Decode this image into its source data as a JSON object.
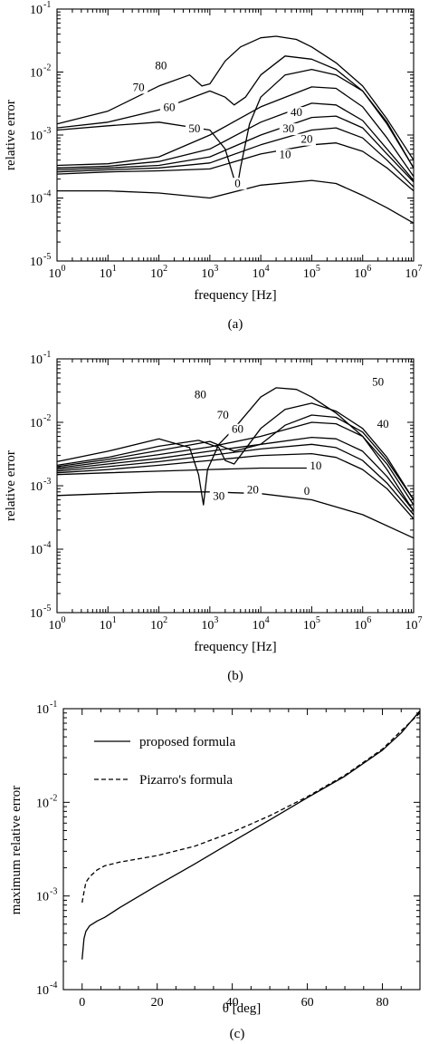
{
  "colors": {
    "line": "#000000",
    "background": "#ffffff"
  },
  "chart_data": [
    {
      "type": "line",
      "caption": "(a)",
      "xlabel": "frequency [Hz]",
      "ylabel": "relative error",
      "xscale": "log",
      "yscale": "log",
      "xlim": [
        1,
        10000000
      ],
      "ylim": [
        1e-05,
        0.1
      ],
      "x_tick_labels": [
        {
          "base": "10",
          "exp": "0"
        },
        {
          "base": "10",
          "exp": "1"
        },
        {
          "base": "10",
          "exp": "2"
        },
        {
          "base": "10",
          "exp": "3"
        },
        {
          "base": "10",
          "exp": "4"
        },
        {
          "base": "10",
          "exp": "5"
        },
        {
          "base": "10",
          "exp": "6"
        },
        {
          "base": "10",
          "exp": "7"
        }
      ],
      "y_tick_labels": [
        {
          "base": "10",
          "exp": "-5"
        },
        {
          "base": "10",
          "exp": "-4"
        },
        {
          "base": "10",
          "exp": "-3"
        },
        {
          "base": "10",
          "exp": "-2"
        },
        {
          "base": "10",
          "exp": "-1"
        }
      ],
      "series": [
        {
          "name": "0",
          "label_at": [
            3500,
            0.00015
          ],
          "x": [
            1,
            10,
            100,
            1000,
            10000,
            100000,
            300000,
            1000000,
            3000000,
            10000000
          ],
          "y": [
            0.00013,
            0.00013,
            0.00012,
            0.0001,
            0.00016,
            0.00019,
            0.00017,
            0.00011,
            7e-05,
            4e-05
          ]
        },
        {
          "name": "10",
          "label_at": [
            30000,
            0.00043
          ],
          "x": [
            1,
            10,
            100,
            1000,
            10000,
            100000,
            300000,
            1000000,
            3000000,
            10000000
          ],
          "y": [
            0.00024,
            0.00026,
            0.00027,
            0.00029,
            0.0005,
            0.0007,
            0.00075,
            0.00055,
            0.0003,
            0.00013
          ]
        },
        {
          "name": "20",
          "label_at": [
            80000,
            0.00075
          ],
          "x": [
            1,
            10,
            100,
            1000,
            10000,
            100000,
            300000,
            1000000,
            3000000,
            10000000
          ],
          "y": [
            0.00026,
            0.00028,
            0.0003,
            0.00036,
            0.0007,
            0.0012,
            0.0013,
            0.0009,
            0.0004,
            0.00015
          ]
        },
        {
          "name": "30",
          "label_at": [
            35000,
            0.0011
          ],
          "x": [
            1,
            10,
            100,
            1000,
            10000,
            100000,
            300000,
            1000000,
            3000000,
            10000000
          ],
          "y": [
            0.00028,
            0.0003,
            0.00033,
            0.00045,
            0.001,
            0.0019,
            0.002,
            0.0013,
            0.0005,
            0.00018
          ]
        },
        {
          "name": "40",
          "label_at": [
            50000,
            0.002
          ],
          "x": [
            1,
            10,
            100,
            1000,
            10000,
            100000,
            300000,
            1000000,
            3000000,
            10000000
          ],
          "y": [
            0.0003,
            0.00032,
            0.00038,
            0.0006,
            0.0016,
            0.0032,
            0.003,
            0.0017,
            0.0006,
            0.00019
          ]
        },
        {
          "name": "50",
          "label_at": [
            500,
            0.0011
          ],
          "x": [
            1,
            10,
            100,
            1000,
            10000,
            100000,
            300000,
            1000000,
            3000000,
            10000000
          ],
          "y": [
            0.00033,
            0.00035,
            0.00045,
            0.001,
            0.0028,
            0.0058,
            0.0055,
            0.0028,
            0.0009,
            0.00022
          ]
        },
        {
          "name": "60",
          "label_at": [
            160,
            0.0024
          ],
          "x": [
            1,
            10,
            100,
            1000,
            2000,
            3000,
            3500,
            4000,
            6000,
            10000,
            30000,
            100000,
            300000,
            1000000,
            3000000,
            10000000
          ],
          "y": [
            0.0012,
            0.0014,
            0.0016,
            0.0012,
            0.0006,
            0.0002,
            0.00016,
            0.0003,
            0.0015,
            0.004,
            0.009,
            0.011,
            0.009,
            0.005,
            0.0015,
            0.0003
          ]
        },
        {
          "name": "70",
          "label_at": [
            40,
            0.005
          ],
          "x": [
            1,
            10,
            100,
            1000,
            2000,
            3000,
            5000,
            10000,
            30000,
            100000,
            300000,
            1000000,
            3000000,
            10000000
          ],
          "y": [
            0.0013,
            0.0016,
            0.0025,
            0.005,
            0.004,
            0.003,
            0.004,
            0.009,
            0.018,
            0.016,
            0.011,
            0.005,
            0.0016,
            0.0003
          ]
        },
        {
          "name": "80",
          "label_at": [
            110,
            0.011
          ],
          "x": [
            1,
            10,
            100,
            400,
            700,
            1000,
            2000,
            4000,
            10000,
            20000,
            50000,
            100000,
            300000,
            1000000,
            3000000,
            10000000
          ],
          "y": [
            0.0015,
            0.0024,
            0.006,
            0.009,
            0.006,
            0.0065,
            0.015,
            0.025,
            0.035,
            0.037,
            0.033,
            0.025,
            0.014,
            0.006,
            0.0018,
            0.0004
          ]
        }
      ]
    },
    {
      "type": "line",
      "caption": "(b)",
      "xlabel": "frequency [Hz]",
      "ylabel": "relative error",
      "xscale": "log",
      "yscale": "log",
      "xlim": [
        1,
        10000000
      ],
      "ylim": [
        1e-05,
        0.1
      ],
      "x_tick_labels": [
        {
          "base": "10",
          "exp": "0"
        },
        {
          "base": "10",
          "exp": "1"
        },
        {
          "base": "10",
          "exp": "2"
        },
        {
          "base": "10",
          "exp": "3"
        },
        {
          "base": "10",
          "exp": "4"
        },
        {
          "base": "10",
          "exp": "5"
        },
        {
          "base": "10",
          "exp": "6"
        },
        {
          "base": "10",
          "exp": "7"
        }
      ],
      "y_tick_labels": [
        {
          "base": "10",
          "exp": "-5"
        },
        {
          "base": "10",
          "exp": "-4"
        },
        {
          "base": "10",
          "exp": "-3"
        },
        {
          "base": "10",
          "exp": "-2"
        },
        {
          "base": "10",
          "exp": "-1"
        }
      ],
      "series": [
        {
          "name": "0",
          "label_at": [
            80000,
            0.00072
          ],
          "x": [
            1,
            10,
            100,
            1000,
            10000,
            100000,
            1000000,
            10000000
          ],
          "y": [
            0.0007,
            0.00075,
            0.0008,
            0.0008,
            0.00075,
            0.0006,
            0.00035,
            0.00015
          ]
        },
        {
          "name": "10",
          "label_at": [
            120000,
            0.0018
          ],
          "x": [
            1,
            10,
            100,
            1000,
            10000,
            100000
          ],
          "y": [
            0.0015,
            0.0016,
            0.0017,
            0.0018,
            0.0019,
            0.0019
          ]
        },
        {
          "name": "20",
          "label_at": [
            7000,
            0.00075
          ],
          "x": [
            1,
            10,
            100,
            1000,
            10000,
            100000,
            300000,
            1000000,
            3000000,
            10000000
          ],
          "y": [
            0.0016,
            0.0018,
            0.0021,
            0.0025,
            0.003,
            0.0032,
            0.0028,
            0.0018,
            0.0009,
            0.0003
          ]
        },
        {
          "name": "30",
          "label_at": [
            1500,
            0.0006
          ],
          "x": [
            1,
            10,
            100,
            1000,
            10000,
            100000,
            300000,
            1000000,
            3000000,
            10000000
          ],
          "y": [
            0.0017,
            0.002,
            0.0024,
            0.003,
            0.0038,
            0.0045,
            0.004,
            0.0025,
            0.0011,
            0.00035
          ]
        },
        {
          "name": "40",
          "label_at": [
            2500000,
            0.0082
          ],
          "x": [
            1,
            10,
            100,
            1000,
            10000,
            100000,
            300000,
            1000000,
            3000000,
            10000000
          ],
          "y": [
            0.0018,
            0.0022,
            0.0027,
            0.0035,
            0.0045,
            0.0058,
            0.0055,
            0.0035,
            0.0014,
            0.0004
          ]
        },
        {
          "name": "50",
          "label_at": [
            2000000,
            0.038
          ],
          "x": [
            1,
            10,
            100,
            1000,
            10000,
            100000,
            300000,
            1000000,
            3000000,
            10000000
          ],
          "y": [
            0.0019,
            0.0024,
            0.0031,
            0.0041,
            0.006,
            0.01,
            0.0095,
            0.006,
            0.0022,
            0.0005
          ]
        },
        {
          "name": "60",
          "label_at": [
            3500,
            0.0068
          ],
          "x": [
            1,
            10,
            100,
            1000,
            3000,
            10000,
            30000,
            100000,
            300000,
            1000000,
            3000000,
            10000000
          ],
          "y": [
            0.002,
            0.0026,
            0.0036,
            0.005,
            0.0035,
            0.0045,
            0.009,
            0.013,
            0.012,
            0.007,
            0.0025,
            0.0006
          ]
        },
        {
          "name": "70",
          "label_at": [
            1800,
            0.0115
          ],
          "x": [
            1,
            10,
            100,
            600,
            1500,
            2000,
            3000,
            10000,
            30000,
            100000,
            300000,
            1000000,
            3000000,
            10000000
          ],
          "y": [
            0.0021,
            0.0028,
            0.0042,
            0.0052,
            0.004,
            0.0025,
            0.0022,
            0.008,
            0.016,
            0.02,
            0.015,
            0.008,
            0.0028,
            0.0006
          ]
        },
        {
          "name": "80",
          "label_at": [
            650,
            0.024
          ],
          "x": [
            1,
            10,
            100,
            400,
            600,
            750,
            900,
            1500,
            3000,
            10000,
            20000,
            50000,
            100000,
            300000,
            1000000,
            3000000,
            10000000
          ],
          "y": [
            0.0024,
            0.0035,
            0.0055,
            0.004,
            0.0015,
            0.0005,
            0.0018,
            0.0045,
            0.008,
            0.025,
            0.035,
            0.033,
            0.025,
            0.014,
            0.006,
            0.0018,
            0.0004
          ]
        }
      ]
    },
    {
      "type": "line",
      "caption": "(c)",
      "xlabel": "θ [deg]",
      "ylabel": "maximum relative error",
      "xscale": "linear",
      "yscale": "log",
      "xlim": [
        -5,
        90
      ],
      "ylim": [
        0.0001,
        0.1
      ],
      "x_tick_labels": [
        "0",
        "20",
        "40",
        "60",
        "80"
      ],
      "y_tick_labels": [
        {
          "base": "10",
          "exp": "-4"
        },
        {
          "base": "10",
          "exp": "-3"
        },
        {
          "base": "10",
          "exp": "-2"
        },
        {
          "base": "10",
          "exp": "-1"
        }
      ],
      "legend": {
        "placement": "top-left"
      },
      "series": [
        {
          "name": "proposed formula",
          "style": "solid",
          "x": [
            0,
            0.5,
            1,
            2,
            4,
            6,
            10,
            20,
            30,
            40,
            50,
            60,
            70,
            80,
            85,
            90
          ],
          "y": [
            0.00021,
            0.00035,
            0.00042,
            0.00048,
            0.00054,
            0.00059,
            0.00075,
            0.0013,
            0.0022,
            0.0038,
            0.0065,
            0.0112,
            0.019,
            0.036,
            0.055,
            0.095
          ]
        },
        {
          "name": "Pizarro's formula",
          "style": "dashed",
          "x": [
            0,
            0.5,
            1,
            2,
            4,
            6,
            10,
            20,
            30,
            40,
            50,
            60,
            70,
            80,
            85,
            90
          ],
          "y": [
            0.00085,
            0.0011,
            0.0014,
            0.0016,
            0.0019,
            0.0021,
            0.0023,
            0.0027,
            0.0034,
            0.0048,
            0.0072,
            0.0115,
            0.0195,
            0.037,
            0.058,
            0.09
          ]
        }
      ]
    }
  ]
}
